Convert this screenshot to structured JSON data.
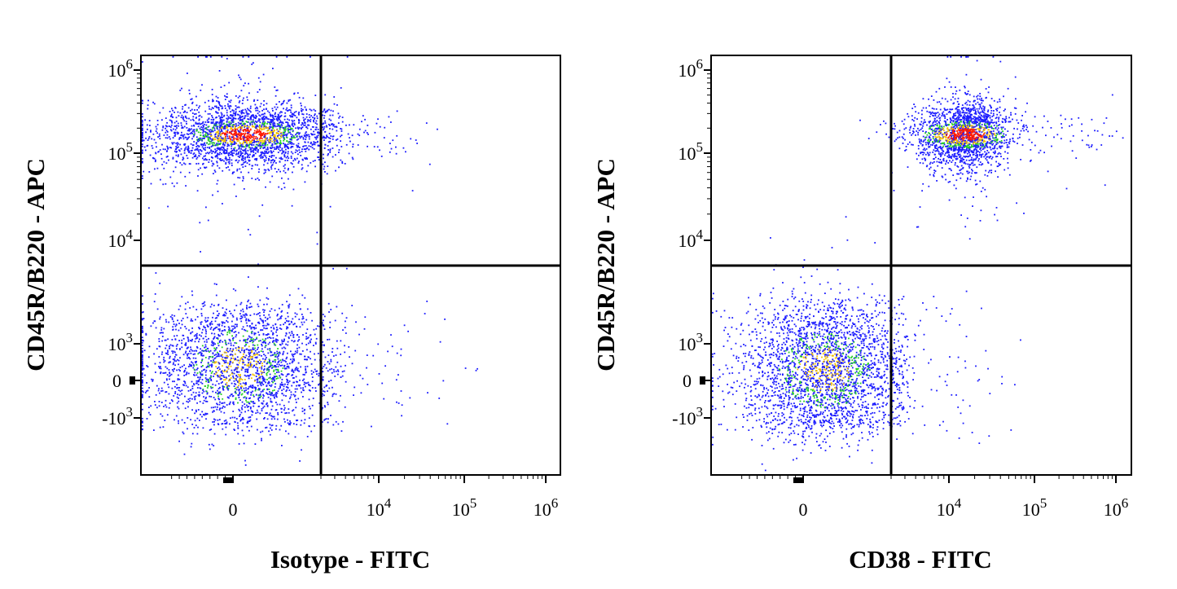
{
  "chart_data": [
    {
      "type": "scatter",
      "subtype": "flow-cytometry-density-dot-plot",
      "xlabel": "Isotype - FITC",
      "ylabel": "CD45R/B220 - APC",
      "x_scale": "biexponential",
      "y_scale": "biexponential",
      "x_tick_labels": [
        "0",
        "10^4",
        "10^5",
        "10^6"
      ],
      "y_tick_labels": [
        "-10^3",
        "0",
        "10^3",
        "10^4",
        "10^5",
        "10^6"
      ],
      "gates": {
        "x_divider": 3000,
        "y_divider": 5000
      },
      "populations": [
        {
          "x_center": 400,
          "x_spread": 1500,
          "y_center": 170000,
          "y_spread": 0.2,
          "count": 2600,
          "density_peak": "high"
        },
        {
          "x_center": 200,
          "x_spread": 1600,
          "y_center": 400,
          "y_spread": 900,
          "count": 2400,
          "density_peak": "medium"
        }
      ],
      "density_colors": [
        "#1c1cff",
        "#22d022",
        "#f2c200",
        "#ff1a00"
      ]
    },
    {
      "type": "scatter",
      "subtype": "flow-cytometry-density-dot-plot",
      "xlabel": "CD38 - FITC",
      "ylabel": "CD45R/B220 - APC",
      "x_scale": "biexponential",
      "y_scale": "biexponential",
      "x_tick_labels": [
        "0",
        "10^4",
        "10^5",
        "10^6"
      ],
      "y_tick_labels": [
        "-10^3",
        "0",
        "10^3",
        "10^4",
        "10^5",
        "10^6"
      ],
      "gates": {
        "x_divider": 3000,
        "y_divider": 5000
      },
      "populations": [
        {
          "x_center": 15000,
          "x_spread": 0.25,
          "y_center": 170000,
          "y_spread": 0.2,
          "count": 2000,
          "density_peak": "high"
        },
        {
          "x_center": 700,
          "x_spread": 1400,
          "y_center": 300,
          "y_spread": 1000,
          "count": 2800,
          "density_peak": "medium"
        }
      ],
      "density_colors": [
        "#1c1cff",
        "#22d022",
        "#f2c200",
        "#ff1a00"
      ]
    }
  ]
}
